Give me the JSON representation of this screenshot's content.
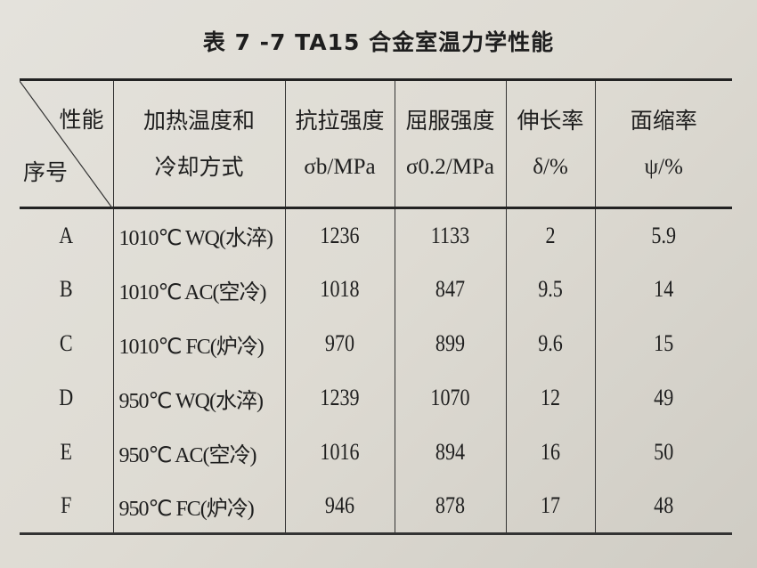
{
  "title": "表 7 -7   TA15 合金室温力学性能",
  "header": {
    "corner_top": "性能",
    "corner_bottom": "序号",
    "columns": [
      {
        "line1": "加热温度和",
        "line2": "冷却方式"
      },
      {
        "line1": "抗拉强度",
        "line2": "σb/MPa"
      },
      {
        "line1": "屈服强度",
        "line2": "σ0.2/MPa"
      },
      {
        "line1": "伸长率",
        "line2": "δ/%"
      },
      {
        "line1": "面缩率",
        "line2": "ψ/%"
      }
    ]
  },
  "rows": [
    [
      "A",
      "1010℃ WQ(水淬)",
      "1236",
      "1133",
      "2",
      "5.9"
    ],
    [
      "B",
      "1010℃ AC(空冷)",
      "1018",
      "847",
      "9.5",
      "14"
    ],
    [
      "C",
      "1010℃ FC(炉冷)",
      "970",
      "899",
      "9.6",
      "15"
    ],
    [
      "D",
      "950℃ WQ(水淬)",
      "1239",
      "1070",
      "12",
      "49"
    ],
    [
      "E",
      "950℃ AC(空冷)",
      "1016",
      "894",
      "16",
      "50"
    ],
    [
      "F",
      "950℃ FC(炉冷)",
      "946",
      "878",
      "17",
      "48"
    ]
  ]
}
